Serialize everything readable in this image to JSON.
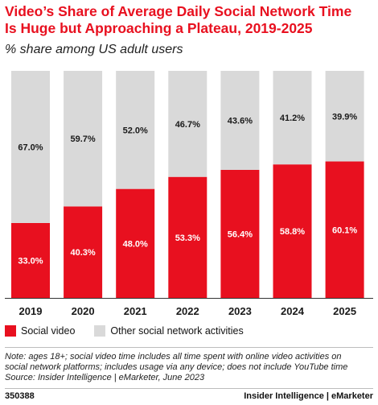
{
  "header": {
    "title_line1": "Video’s Share of Average Daily Social Network Time",
    "title_line2": "Is Huge but Approaching a Plateau, 2019-2025",
    "subtitle": "% share among US adult users"
  },
  "colors": {
    "social_video": "#e8101f",
    "other": "#d9d9d9",
    "title": "#e8101f"
  },
  "chart_data": {
    "type": "bar",
    "stacked": true,
    "title": "Video’s Share of Average Daily Social Network Time Is Huge but Approaching a Plateau, 2019-2025",
    "subtitle": "% share among US adult users",
    "categories": [
      "2019",
      "2020",
      "2021",
      "2022",
      "2023",
      "2024",
      "2025"
    ],
    "series": [
      {
        "name": "Social video",
        "values": [
          33.0,
          40.3,
          48.0,
          53.3,
          56.4,
          58.8,
          60.1
        ],
        "labels": [
          "33.0%",
          "40.3%",
          "48.0%",
          "53.3%",
          "56.4%",
          "58.8%",
          "60.1%"
        ]
      },
      {
        "name": "Other social network activities",
        "values": [
          67.0,
          59.7,
          52.0,
          46.7,
          43.6,
          41.2,
          39.9
        ],
        "labels": [
          "67.0%",
          "59.7%",
          "52.0%",
          "46.7%",
          "43.6%",
          "41.2%",
          "39.9%"
        ]
      }
    ],
    "ylim": [
      0,
      100
    ],
    "grid": false,
    "legend_position": "bottom-left"
  },
  "legend": {
    "items": [
      {
        "label": "Social video"
      },
      {
        "label": "Other social network activities"
      }
    ]
  },
  "note": {
    "line1": "Note: ages 18+; social video time includes all time spent with online video activities on",
    "line2": "social network platforms; includes usage via any device; does not include YouTube time",
    "line3": "Source: Insider Intelligence | eMarketer, June 2023"
  },
  "footer": {
    "chart_id": "350388",
    "brand": "Insider Intelligence | eMarketer"
  }
}
